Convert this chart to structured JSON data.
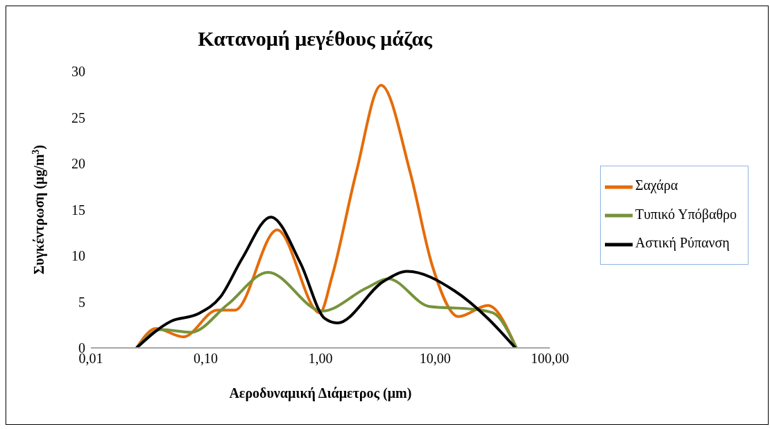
{
  "chart_data": {
    "type": "line",
    "title": "Κατανομή μεγέθους μάζας",
    "xlabel": "Αεροδυναμική Διάμετρος (μm)",
    "ylabel": "Συγκέντρωση (μg/m$^{3}$)",
    "log": "x",
    "xlim": [
      0.01,
      100
    ],
    "xticks": [
      {
        "value": 0.01,
        "label": "0,01"
      },
      {
        "value": 0.1,
        "label": "0,10"
      },
      {
        "value": 1,
        "label": "1,00"
      },
      {
        "value": 10,
        "label": "10,00"
      },
      {
        "value": 100,
        "label": "100,00"
      }
    ],
    "ylim": [
      0,
      30
    ],
    "yticks": [
      0,
      5,
      10,
      15,
      20,
      25,
      30
    ],
    "grid": false,
    "legend": "right",
    "marker": "none",
    "line_style": "solid",
    "series": [
      {
        "name": "Σαχάρα",
        "color": "#e46c0a",
        "x": [
          0.025,
          0.037,
          0.064,
          0.126,
          0.18,
          0.42,
          0.99,
          1.26,
          2.05,
          3.38,
          6.07,
          9.4,
          16,
          28.8,
          51
        ],
        "values": [
          0,
          2.1,
          1.2,
          4.1,
          4.1,
          12.8,
          3.8,
          7.7,
          19,
          28.5,
          19,
          9,
          3.4,
          4.6,
          0
        ]
      },
      {
        "name": "Τυπικό Υπόβαθρο",
        "color": "#77933c",
        "x": [
          0.025,
          0.041,
          0.075,
          0.155,
          0.35,
          1.04,
          2.52,
          3.9,
          8.9,
          21.4,
          31.9,
          51
        ],
        "values": [
          0,
          2,
          1.7,
          4.7,
          8.2,
          4,
          6.5,
          7.5,
          4.5,
          4.2,
          3.8,
          0
        ]
      },
      {
        "name": "Αστική Ρύπανση",
        "color": "#000000",
        "x": [
          0.025,
          0.05,
          0.086,
          0.134,
          0.208,
          0.37,
          0.67,
          1.09,
          1.4,
          3.53,
          5.7,
          14.7,
          28.8,
          50
        ],
        "values": [
          0,
          2.9,
          3.7,
          5.5,
          9.7,
          14.2,
          9.2,
          3.2,
          2.7,
          7.2,
          8.3,
          6.2,
          3.2,
          0
        ]
      }
    ]
  }
}
